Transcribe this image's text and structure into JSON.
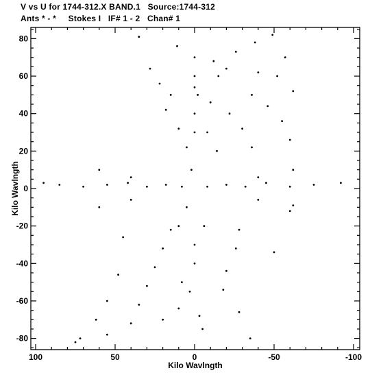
{
  "header": {
    "title_line1": "V vs U for 1744-312.X BAND.1   Source:1744-312",
    "title_line2": "Ants * - *     Stokes I   IF# 1 - 2   Chan# 1"
  },
  "chart_data": {
    "type": "scatter",
    "title": "V vs U for 1744-312.X BAND.1   Source:1744-312",
    "subtitle": "Ants * - *     Stokes I   IF# 1 - 2   Chan# 1",
    "xlabel": "Kilo Wavlngth",
    "ylabel": "Kilo Wavlngth",
    "xlim": [
      100,
      -100
    ],
    "ylim": [
      -86,
      86
    ],
    "x_reversed": true,
    "xticks": [
      100,
      50,
      0,
      -50,
      -100
    ],
    "yticks": [
      -80,
      -60,
      -40,
      -20,
      0,
      20,
      40,
      60,
      80
    ],
    "grid": false,
    "legend": "none",
    "point_color": "#000000",
    "series": [
      {
        "points": [
          [
            35,
            81
          ],
          [
            -26,
            73
          ],
          [
            -38,
            78
          ],
          [
            -49,
            82
          ],
          [
            0,
            70
          ],
          [
            -12,
            68
          ],
          [
            11,
            76
          ],
          [
            -57,
            70
          ],
          [
            28,
            64
          ],
          [
            -20,
            64
          ],
          [
            -40,
            62
          ],
          [
            22,
            56
          ],
          [
            0,
            54
          ],
          [
            -15,
            60
          ],
          [
            -52,
            60
          ],
          [
            15,
            50
          ],
          [
            -10,
            46
          ],
          [
            -36,
            50
          ],
          [
            -62,
            52
          ],
          [
            18,
            42
          ],
          [
            0,
            40
          ],
          [
            -22,
            40
          ],
          [
            -46,
            44
          ],
          [
            10,
            32
          ],
          [
            -8,
            30
          ],
          [
            -30,
            32
          ],
          [
            -55,
            36
          ],
          [
            5,
            22
          ],
          [
            -14,
            20
          ],
          [
            -36,
            22
          ],
          [
            -60,
            26
          ],
          [
            95,
            3
          ],
          [
            85,
            2
          ],
          [
            70,
            1
          ],
          [
            55,
            2
          ],
          [
            42,
            3
          ],
          [
            30,
            1
          ],
          [
            18,
            2
          ],
          [
            8,
            1
          ],
          [
            -8,
            1
          ],
          [
            -20,
            2
          ],
          [
            -32,
            1
          ],
          [
            -45,
            3
          ],
          [
            -60,
            1
          ],
          [
            -75,
            2
          ],
          [
            -92,
            3
          ],
          [
            60,
            10
          ],
          [
            40,
            6
          ],
          [
            -40,
            6
          ],
          [
            -62,
            10
          ],
          [
            60,
            -10
          ],
          [
            40,
            -6
          ],
          [
            -40,
            -6
          ],
          [
            -62,
            -9
          ],
          [
            15,
            -22
          ],
          [
            -6,
            -20
          ],
          [
            -28,
            -22
          ],
          [
            45,
            -26
          ],
          [
            20,
            -32
          ],
          [
            0,
            -30
          ],
          [
            -26,
            -32
          ],
          [
            -50,
            -34
          ],
          [
            25,
            -42
          ],
          [
            0,
            -40
          ],
          [
            -20,
            -44
          ],
          [
            48,
            -46
          ],
          [
            30,
            -52
          ],
          [
            8,
            -50
          ],
          [
            -18,
            -54
          ],
          [
            55,
            -60
          ],
          [
            35,
            -62
          ],
          [
            10,
            -64
          ],
          [
            -28,
            -66
          ],
          [
            62,
            -70
          ],
          [
            40,
            -72
          ],
          [
            20,
            -70
          ],
          [
            -5,
            -75
          ],
          [
            -35,
            -80
          ],
          [
            72,
            -80
          ],
          [
            55,
            -78
          ],
          [
            75,
            -82
          ],
          [
            10,
            -20
          ],
          [
            5,
            -10
          ],
          [
            2,
            10
          ],
          [
            0,
            30
          ],
          [
            -2,
            50
          ],
          [
            0,
            60
          ],
          [
            3,
            -55
          ],
          [
            -3,
            -68
          ],
          [
            -60,
            -12
          ]
        ]
      }
    ]
  }
}
